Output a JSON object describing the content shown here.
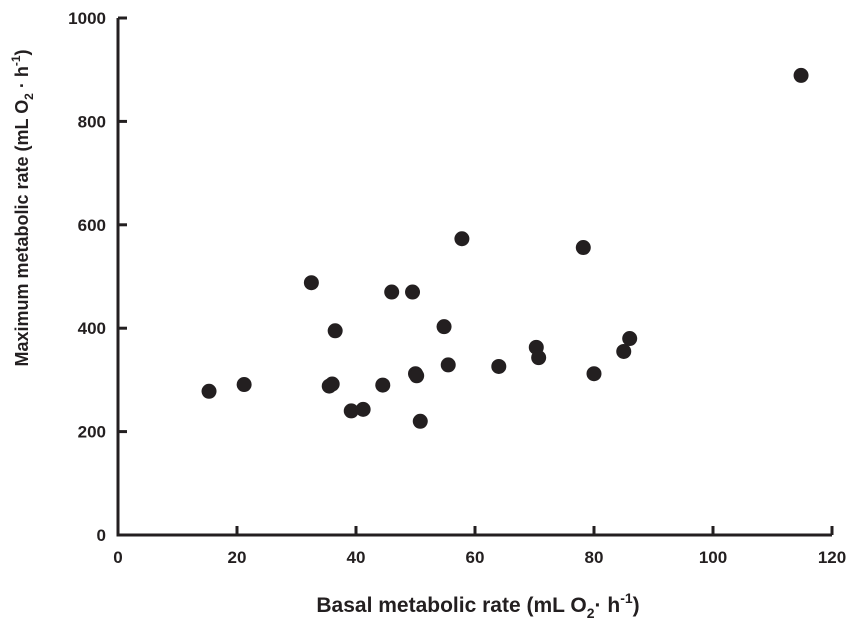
{
  "chart_data": {
    "type": "scatter",
    "title": "",
    "xlabel": {
      "prefix": "Basal metabolic rate (mL O",
      "sub": "2",
      "middle": "· h",
      "sup": "-1",
      "suffix": ")"
    },
    "ylabel": {
      "prefix": "Maximum metabolic rate (mL O",
      "sub": "2",
      "middle": " · h",
      "sup": "-1",
      "suffix": ")"
    },
    "xlim": [
      0,
      120
    ],
    "ylim": [
      0,
      1000
    ],
    "xticks": [
      0,
      20,
      40,
      60,
      80,
      100,
      120
    ],
    "yticks": [
      0,
      200,
      400,
      600,
      800,
      1000
    ],
    "grid": false,
    "legend": "none",
    "marker_color": "#231f20",
    "points": [
      {
        "x": 15.3,
        "y": 278
      },
      {
        "x": 21.2,
        "y": 291
      },
      {
        "x": 32.5,
        "y": 488
      },
      {
        "x": 35.5,
        "y": 288
      },
      {
        "x": 36.0,
        "y": 292
      },
      {
        "x": 36.5,
        "y": 395
      },
      {
        "x": 39.2,
        "y": 240
      },
      {
        "x": 41.2,
        "y": 243
      },
      {
        "x": 44.5,
        "y": 290
      },
      {
        "x": 46.0,
        "y": 470
      },
      {
        "x": 49.5,
        "y": 470
      },
      {
        "x": 50.0,
        "y": 312
      },
      {
        "x": 50.2,
        "y": 308
      },
      {
        "x": 50.8,
        "y": 220
      },
      {
        "x": 54.8,
        "y": 403
      },
      {
        "x": 55.5,
        "y": 329
      },
      {
        "x": 57.8,
        "y": 573
      },
      {
        "x": 64.0,
        "y": 326
      },
      {
        "x": 70.3,
        "y": 363
      },
      {
        "x": 70.7,
        "y": 343
      },
      {
        "x": 78.2,
        "y": 556
      },
      {
        "x": 80.0,
        "y": 312
      },
      {
        "x": 85.0,
        "y": 355
      },
      {
        "x": 86.0,
        "y": 380
      },
      {
        "x": 114.8,
        "y": 889
      }
    ]
  }
}
